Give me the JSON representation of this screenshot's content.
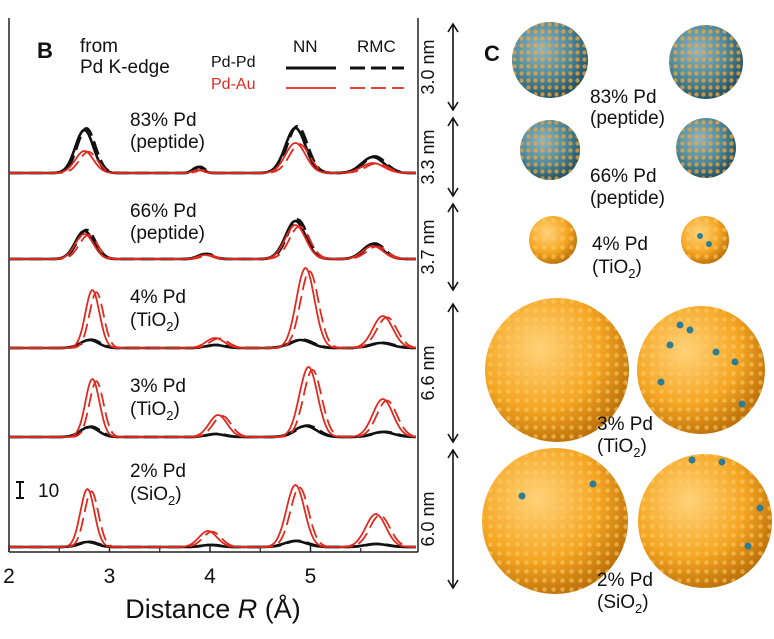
{
  "chart_data": {
    "type": "line",
    "panel_label": "B",
    "source_line1": "from",
    "source_line2": "Pd K-edge",
    "xlabel_text": "Distance ",
    "xlabel_var": "R",
    "xlabel_unit": " (Å)",
    "xlim": [
      2,
      6.05
    ],
    "xticks": [
      "2",
      "3",
      "4",
      "5"
    ],
    "scale_bar_label": "10",
    "legend": {
      "columns": [
        "NN",
        "RMC"
      ],
      "rows": [
        {
          "name": "Pd-Pd",
          "color": "#111111"
        },
        {
          "name": "Pd-Au",
          "color": "#e02a1f"
        }
      ]
    },
    "colors": {
      "pdpd": "#111111",
      "pdau": "#e02a1f"
    },
    "samples": [
      {
        "pd": "83% Pd",
        "support": "(peptide)",
        "pdpd_peaks": [
          [
            2.75,
            0.09,
            43
          ],
          [
            3.88,
            0.05,
            6
          ],
          [
            4.85,
            0.1,
            45
          ],
          [
            5.62,
            0.11,
            16
          ]
        ],
        "pdau_peaks": [
          [
            2.75,
            0.09,
            22
          ],
          [
            3.88,
            0.05,
            3
          ],
          [
            4.85,
            0.1,
            30
          ],
          [
            5.62,
            0.11,
            10
          ]
        ]
      },
      {
        "pd": "66% Pd",
        "support": "(peptide)",
        "pdpd_peaks": [
          [
            2.75,
            0.09,
            28
          ],
          [
            3.95,
            0.07,
            5
          ],
          [
            4.85,
            0.1,
            38
          ],
          [
            5.62,
            0.1,
            15
          ]
        ],
        "pdau_peaks": [
          [
            2.75,
            0.09,
            25
          ],
          [
            3.95,
            0.07,
            4
          ],
          [
            4.85,
            0.1,
            34
          ],
          [
            5.62,
            0.1,
            13
          ]
        ]
      },
      {
        "pd": "4% Pd",
        "support": "TiO|2|)",
        "pdpd_peaks": [
          [
            2.8,
            0.09,
            8
          ],
          [
            4.05,
            0.09,
            3
          ],
          [
            4.9,
            0.11,
            8
          ],
          [
            5.7,
            0.11,
            5
          ]
        ],
        "pdau_peaks": [
          [
            2.83,
            0.07,
            58
          ],
          [
            4.05,
            0.09,
            10
          ],
          [
            4.95,
            0.09,
            80
          ],
          [
            5.72,
            0.1,
            32
          ]
        ]
      },
      {
        "pd": "3% Pd",
        "support": "TiO|2|)",
        "pdpd_peaks": [
          [
            2.8,
            0.09,
            10
          ],
          [
            4.05,
            0.09,
            3
          ],
          [
            4.95,
            0.11,
            11
          ],
          [
            5.72,
            0.11,
            5
          ]
        ],
        "pdau_peaks": [
          [
            2.83,
            0.07,
            58
          ],
          [
            4.08,
            0.09,
            22
          ],
          [
            4.98,
            0.09,
            70
          ],
          [
            5.72,
            0.1,
            38
          ]
        ]
      },
      {
        "pd": "2% Pd",
        "support": "SiO|2|)",
        "pdpd_peaks": [
          [
            2.78,
            0.09,
            5
          ],
          [
            4.0,
            0.09,
            2
          ],
          [
            4.85,
            0.11,
            6
          ],
          [
            5.65,
            0.11,
            3
          ]
        ],
        "pdau_peaks": [
          [
            2.78,
            0.07,
            58
          ],
          [
            3.98,
            0.09,
            16
          ],
          [
            4.85,
            0.09,
            62
          ],
          [
            5.65,
            0.1,
            33
          ]
        ]
      }
    ]
  },
  "panel_c": {
    "panel_label": "C",
    "rows": [
      {
        "size": "3.0 nm",
        "label": "83% Pd",
        "support": "(peptide)",
        "pd_fraction": 0.83
      },
      {
        "size": "3.3 nm",
        "label": "66% Pd",
        "support": "(peptide)",
        "pd_fraction": 0.66
      },
      {
        "size": "3.7 nm",
        "label": "4% Pd",
        "support": "TiO|2|)",
        "pd_fraction": 0.04
      },
      {
        "size": "6.6 nm",
        "label": "3% Pd",
        "support": "TiO|2|)",
        "pd_fraction": 0.03
      },
      {
        "size": "6.0 nm",
        "label": "2% Pd",
        "support": "SiO|2|)",
        "pd_fraction": 0.02
      }
    ],
    "colors": {
      "au": "#f5a623",
      "pd": "#2e7d95"
    }
  }
}
